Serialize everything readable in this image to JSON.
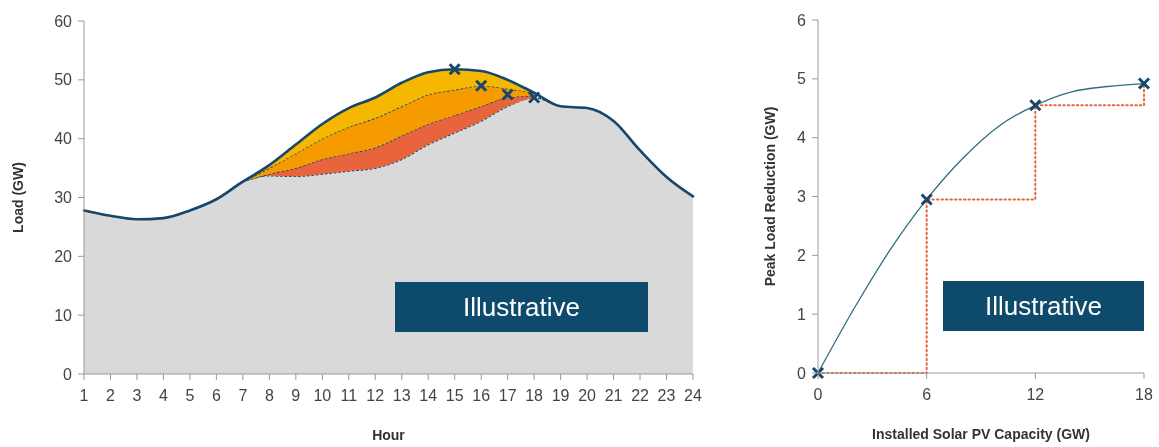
{
  "chart_data": [
    {
      "type": "area",
      "stacked": true,
      "xlabel": "Hour",
      "ylabel": "Load (GW)",
      "xlim": [
        1,
        24
      ],
      "xticks": [
        1,
        2,
        3,
        4,
        5,
        6,
        7,
        8,
        9,
        10,
        11,
        12,
        13,
        14,
        15,
        16,
        17,
        18,
        19,
        20,
        21,
        22,
        23,
        24
      ],
      "ylim": [
        0,
        60
      ],
      "yticks": [
        0,
        10,
        20,
        30,
        40,
        50,
        60
      ],
      "annotations": [
        "Illustrative"
      ],
      "x": [
        1,
        2,
        3,
        4,
        5,
        6,
        7,
        8,
        9,
        10,
        11,
        12,
        13,
        14,
        15,
        16,
        17,
        18,
        19,
        20,
        21,
        22,
        23,
        24
      ],
      "series": [
        {
          "color": "#d9d9d9",
          "line_style": "dotted",
          "values": [
            27.8,
            26.9,
            26.3,
            26.5,
            27.8,
            29.7,
            32.7,
            33.7,
            33.6,
            34,
            34.5,
            35,
            36.5,
            39,
            41,
            43,
            45.5,
            47,
            45.5,
            45.2,
            43,
            38,
            33.5,
            30.2
          ]
        },
        {
          "color": "#e8643c",
          "line_style": "dotted",
          "values": [
            null,
            null,
            null,
            null,
            null,
            null,
            0,
            0.3,
            1.4,
            2.5,
            3,
            3.5,
            4,
            3.5,
            3,
            2.5,
            1.5,
            0.3,
            null,
            null,
            null,
            null,
            null,
            null
          ]
        },
        {
          "color": "#f59b00",
          "line_style": "dotted",
          "values": [
            null,
            null,
            null,
            null,
            null,
            null,
            0,
            1,
            2.5,
            3.5,
            4.5,
            5,
            5,
            5,
            4.3,
            3.5,
            1.5,
            0.5,
            null,
            null,
            null,
            null,
            null,
            null
          ]
        },
        {
          "color": "#f5b700",
          "values": [
            null,
            null,
            null,
            null,
            null,
            null,
            0,
            0.5,
            1.5,
            2.5,
            3.2,
            3.5,
            4,
            3.8,
            3.5,
            2.5,
            1.5,
            0,
            null,
            null,
            null,
            null,
            null,
            null
          ]
        },
        {
          "type": "line",
          "color": "#17476b",
          "values": [
            27.8,
            26.9,
            26.3,
            26.5,
            27.8,
            29.7,
            32.7,
            35.5,
            39,
            42.5,
            45.2,
            47,
            49.5,
            51.3,
            51.8,
            51.5,
            50,
            47.8,
            45.5,
            45.2,
            43,
            38,
            33.5,
            30.2
          ]
        },
        {
          "type": "scatter",
          "color": "#17476b",
          "marker": "cross",
          "x": [
            15,
            16,
            17,
            18
          ],
          "values": [
            51.8,
            49,
            47.5,
            47
          ]
        }
      ]
    },
    {
      "type": "line",
      "xlabel": "Installed Solar PV Capacity (GW)",
      "ylabel": "Peak Load Reduction (GW)",
      "xlim": [
        0,
        18
      ],
      "xticks": [
        0,
        6,
        12,
        18
      ],
      "ylim": [
        0,
        6
      ],
      "yticks": [
        0,
        1,
        2,
        3,
        4,
        5,
        6
      ],
      "annotations": [
        "Illustrative"
      ],
      "series": [
        {
          "type": "step",
          "color": "#e8643c",
          "line_style": "dotted",
          "x": [
            0,
            6,
            12,
            18
          ],
          "values": [
            0,
            2.95,
            4.55,
            4.92
          ]
        },
        {
          "color": "#2f7080",
          "x": [
            0,
            2,
            4,
            6,
            8,
            10,
            12,
            14,
            16,
            18
          ],
          "values": [
            0,
            1.1,
            2.1,
            2.95,
            3.65,
            4.2,
            4.55,
            4.78,
            4.87,
            4.92
          ]
        },
        {
          "type": "scatter",
          "color": "#17476b",
          "marker": "cross",
          "x": [
            0,
            6,
            12,
            18
          ],
          "values": [
            0,
            2.95,
            4.55,
            4.92
          ]
        }
      ]
    }
  ]
}
